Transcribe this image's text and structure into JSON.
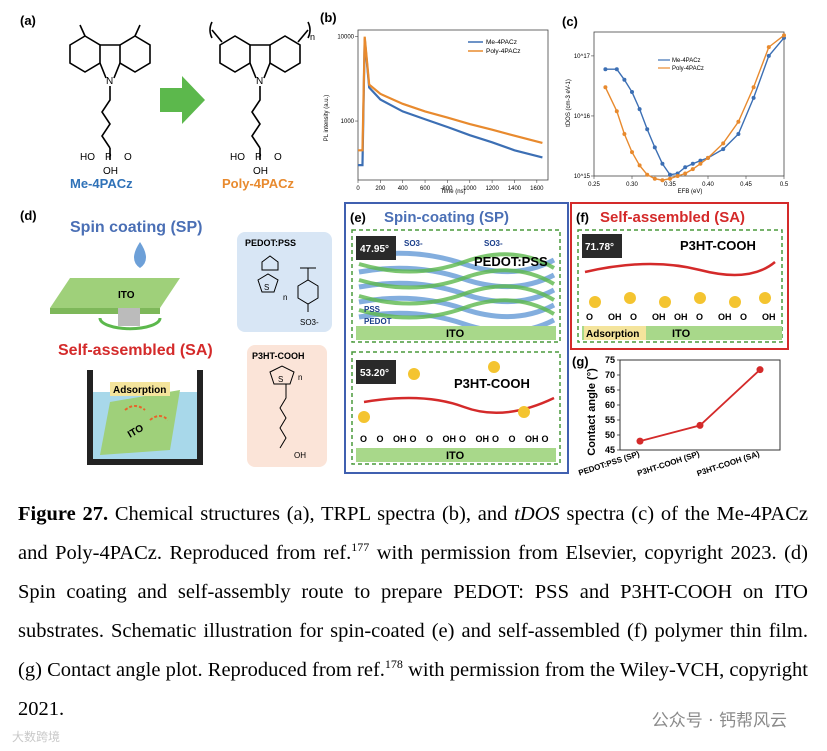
{
  "panel_labels": {
    "a": "(a)",
    "b": "(b)",
    "c": "(c)",
    "d": "(d)",
    "e": "(e)",
    "f": "(f)",
    "g": "(g)"
  },
  "panel_a": {
    "mol_left": "Me-4PACz",
    "mol_right": "Poly-4PACz",
    "n_label": "n",
    "ho": "HO",
    "oh": "OH",
    "p": "P",
    "o": "O",
    "n_atom": "N"
  },
  "panel_d": {
    "sp_title": "Spin coating (SP)",
    "sa_title": "Self-assembled (SA)",
    "ito": "ITO",
    "adsorption": "Adsorption",
    "pedot_pss": "PEDOT:PSS",
    "p3ht_cooh": "P3HT-COOH",
    "s_atom": "S",
    "so3": "SO3-",
    "oh": "OH",
    "n": "n"
  },
  "panel_e": {
    "title": "Spin-coating (SP)",
    "angle_top": "47.95°",
    "angle_bottom": "53.20°",
    "pedot_pss": "PEDOT:PSS",
    "pss": "PSS",
    "pedot": "PEDOT",
    "ito": "ITO",
    "p3ht_cooh": "P3HT-COOH",
    "so3": "SO3-",
    "bottom_groups": [
      "O",
      "O",
      "OH",
      "O",
      "O",
      "OH",
      "O",
      "OH",
      "O",
      "O",
      "OH",
      "O"
    ]
  },
  "panel_f": {
    "title": "Self-assembled (SA)",
    "angle": "71.78°",
    "p3ht_cooh": "P3HT-COOH",
    "adsorption": "Adsorption",
    "ito": "ITO",
    "bottom_groups": [
      "O",
      "OH",
      "O",
      "OH",
      "OH",
      "O",
      "OH",
      "O",
      "OH"
    ]
  },
  "chart_data": [
    {
      "type": "line",
      "panel": "b",
      "title": "",
      "xlabel": "Time (ns)",
      "ylabel": "PL intensity (a.u.)",
      "yscale": "log",
      "xlim": [
        0,
        1700
      ],
      "ylim": [
        200,
        12000
      ],
      "x_ticks": [
        "0",
        "200",
        "400",
        "600",
        "800",
        "1000",
        "1200",
        "1400",
        "1600"
      ],
      "y_ticks": [
        "10000",
        "1000"
      ],
      "legend": "top-right",
      "series": [
        {
          "name": "Me-4PACz",
          "color": "#3c6fb4",
          "x": [
            0,
            40,
            60,
            100,
            200,
            400,
            600,
            800,
            1000,
            1200,
            1400,
            1650
          ],
          "values": [
            300,
            300,
            9500,
            2500,
            1800,
            1300,
            1050,
            850,
            680,
            560,
            450,
            370
          ]
        },
        {
          "name": "Poly-4PACz",
          "color": "#e88a2e",
          "x": [
            0,
            40,
            60,
            100,
            200,
            400,
            600,
            800,
            1000,
            1200,
            1400,
            1650
          ],
          "values": [
            450,
            450,
            10000,
            2700,
            2100,
            1600,
            1300,
            1100,
            920,
            790,
            670,
            550
          ]
        }
      ]
    },
    {
      "type": "line",
      "panel": "c",
      "title": "",
      "xlabel": "EFB (eV)",
      "ylabel": "tDOS (cm-3 eV-1)",
      "yscale": "log",
      "xlim": [
        0.25,
        0.5
      ],
      "ylim": [
        1000000000000000.0,
        2.5e+17
      ],
      "x_ticks": [
        "0.25",
        "0.30",
        "0.35",
        "0.40",
        "0.45",
        "0.5"
      ],
      "y_ticks": [
        "10^17",
        "10^16",
        "10^15"
      ],
      "legend": "top-left",
      "series": [
        {
          "name": "Me-4PACz",
          "color": "#3c6fb4",
          "x": [
            0.265,
            0.28,
            0.29,
            0.3,
            0.31,
            0.32,
            0.33,
            0.34,
            0.35,
            0.36,
            0.37,
            0.38,
            0.39,
            0.4,
            0.42,
            0.44,
            0.46,
            0.48,
            0.5
          ],
          "values": [
            6e+16,
            6e+16,
            4e+16,
            2.5e+16,
            1.3e+16,
            6000000000000000.0,
            3000000000000000.0,
            1600000000000000.0,
            1050000000000000.0,
            1100000000000000.0,
            1400000000000000.0,
            1600000000000000.0,
            1800000000000000.0,
            2000000000000000.0,
            2800000000000000.0,
            5000000000000000.0,
            2e+16,
            1e+17,
            2e+17
          ]
        },
        {
          "name": "Poly-4PACz",
          "color": "#e88a2e",
          "x": [
            0.265,
            0.28,
            0.29,
            0.3,
            0.31,
            0.32,
            0.33,
            0.34,
            0.35,
            0.36,
            0.37,
            0.38,
            0.39,
            0.4,
            0.42,
            0.44,
            0.46,
            0.48,
            0.5
          ],
          "values": [
            3e+16,
            1.2e+16,
            5000000000000000.0,
            2500000000000000.0,
            1500000000000000.0,
            1050000000000000.0,
            900000000000000.0,
            850000000000000.0,
            900000000000000.0,
            1000000000000000.0,
            1100000000000000.0,
            1300000000000000.0,
            1600000000000000.0,
            2000000000000000.0,
            3500000000000000.0,
            8000000000000000.0,
            3e+16,
            1.4e+17,
            2.2e+17
          ]
        }
      ]
    },
    {
      "type": "line",
      "panel": "g",
      "title": "",
      "xlabel": "",
      "ylabel": "Contact angle (°)",
      "categories": [
        "PEDOT:PSS (SP)",
        "P3HT-COOH (SP)",
        "P3HT-COOH (SA)"
      ],
      "ylim": [
        45,
        75
      ],
      "y_ticks": [
        "45",
        "50",
        "55",
        "60",
        "65",
        "70",
        "75"
      ],
      "series": [
        {
          "name": "Contact angle",
          "color": "#d42a2a",
          "values": [
            47.95,
            53.2,
            71.78
          ]
        }
      ]
    }
  ],
  "caption": {
    "bold": "Figure 27.",
    "s1": " Chemical structures (a), TRPL spectra (b), and ",
    "tdos": "tDOS",
    "s2": " spectra (c) of the Me-4PACz and Poly-4PACz. Reproduced from ref.",
    "ref1": "177",
    "s3": " with permission from Elsevier, copyright 2023. (d) Spin coating and self-assembly route to prepare PEDOT: PSS and P3HT-COOH on ITO substrates. Schematic illustration for spin-coated (e) and self-assembled (f) polymer thin film. (g) Contact angle plot. Reproduced from ref.",
    "ref2": "178",
    "s4": " with permission from the Wiley-VCH, copyright 2021."
  },
  "watermarks": {
    "right": "公众号 · 钙帮风云",
    "left": "大数跨境"
  }
}
